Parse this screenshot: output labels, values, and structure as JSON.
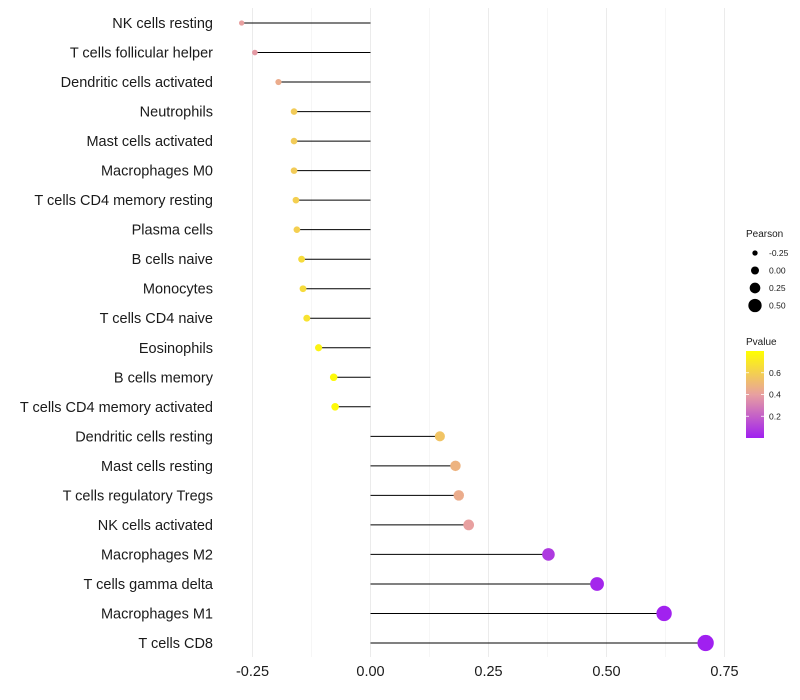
{
  "chart_data": {
    "type": "lollipop",
    "title": "",
    "xlabel": "",
    "ylabel": "",
    "xlim": [
      -0.31,
      0.75
    ],
    "x_ticks": [
      -0.25,
      0.0,
      0.25,
      0.5,
      0.75
    ],
    "x_tick_labels": [
      "-0.25",
      "0.00",
      "0.25",
      "0.50",
      "0.75"
    ],
    "color_low": "#a020f0",
    "color_mid": "#e8a0a0",
    "color_high": "#ffff00",
    "categories": [
      "NK cells resting",
      "T cells follicular helper",
      "Dendritic cells activated",
      "Neutrophils",
      "Mast cells activated",
      "Macrophages M0",
      "T cells CD4 memory resting",
      "Plasma cells",
      "B cells naive",
      "Monocytes",
      "T cells CD4 naive",
      "Eosinophils",
      "B cells memory",
      "T cells CD4 memory activated",
      "Dendritic cells resting",
      "Mast cells resting",
      "T cells regulatory  Tregs ",
      "NK cells activated",
      "Macrophages M2",
      "T cells gamma delta",
      "Macrophages M1",
      "T cells CD8"
    ],
    "pearson": [
      -0.273,
      -0.245,
      -0.195,
      -0.162,
      -0.162,
      -0.162,
      -0.158,
      -0.156,
      -0.146,
      -0.143,
      -0.135,
      -0.11,
      -0.078,
      -0.075,
      0.147,
      0.18,
      0.187,
      0.208,
      0.377,
      0.48,
      0.622,
      0.71
    ],
    "pvalue": [
      0.4,
      0.38,
      0.45,
      0.58,
      0.58,
      0.58,
      0.6,
      0.6,
      0.65,
      0.65,
      0.68,
      0.75,
      0.78,
      0.78,
      0.55,
      0.48,
      0.45,
      0.4,
      0.08,
      0.02,
      0.005,
      0.001
    ],
    "legend": {
      "pearson_title": "Pearson",
      "pearson_values": [
        -0.25,
        0.0,
        0.25,
        0.5
      ],
      "pearson_labels": [
        "-0.25",
        "0.00",
        "0.25",
        "0.50"
      ],
      "pvalue_title": "Pvalue",
      "pvalue_ticks": [
        0.6,
        0.4,
        0.2
      ],
      "pvalue_labels": [
        "0.6",
        "0.4",
        "0.2"
      ],
      "pvalue_range": [
        0.0,
        0.8
      ],
      "position": "right"
    }
  }
}
